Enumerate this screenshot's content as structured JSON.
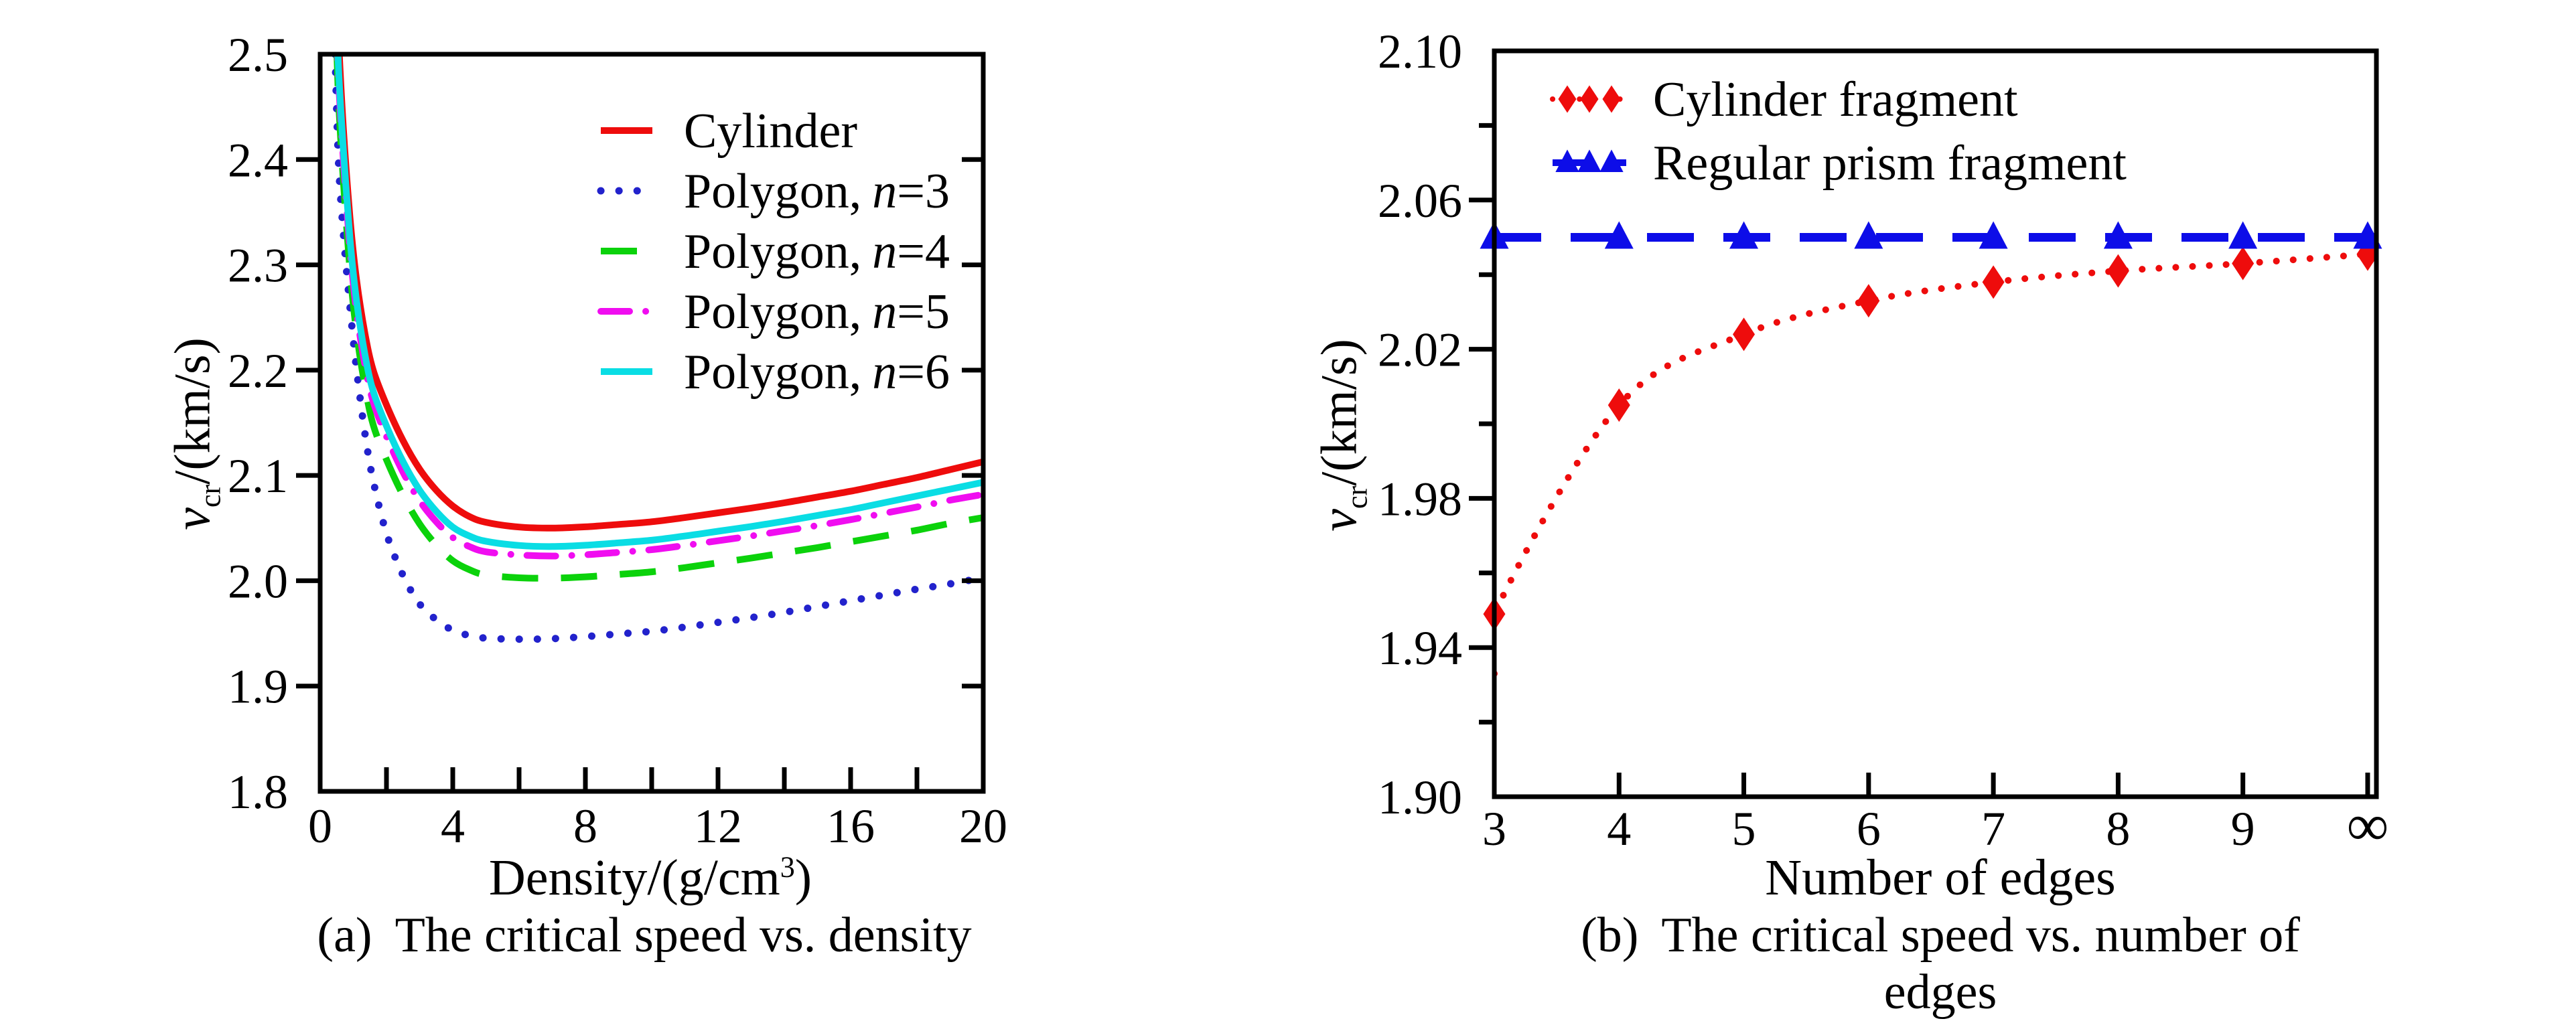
{
  "page": {
    "background": "#ffffff",
    "frame_color": "#000000",
    "text_color": "#000000"
  },
  "chart_data": [
    {
      "id": "a",
      "type": "line",
      "caption_tag": "(a)",
      "caption_text": "The critical speed vs. density",
      "xlabel": {
        "pre": "Density/(g/cm",
        "sup": "3",
        "post": ")"
      },
      "ylabel": {
        "italic": "v",
        "sub": "cr",
        "rest": "/(km/s)"
      },
      "xlim": [
        0,
        20
      ],
      "ylim": [
        1.8,
        2.5
      ],
      "grid": false,
      "legend_position": "top-right-inside",
      "xticks": {
        "label_values": [
          0,
          4,
          8,
          12,
          16,
          20
        ],
        "labels": [
          "0",
          "4",
          "8",
          "12",
          "16",
          "20"
        ],
        "tick_values": [
          2,
          4,
          6,
          8,
          10,
          12,
          14,
          16,
          18
        ]
      },
      "yticks": {
        "label_values": [
          1.8,
          1.9,
          2.0,
          2.1,
          2.2,
          2.3,
          2.4,
          2.5
        ],
        "labels": [
          "1.8",
          "1.9",
          "2.0",
          "2.1",
          "2.2",
          "2.3",
          "2.4",
          "2.5"
        ],
        "tick_values": [
          1.9,
          2.0,
          2.1,
          2.2,
          2.3,
          2.4
        ],
        "minor_tick_values": []
      },
      "x": [
        0.45,
        0.55,
        0.7,
        0.9,
        1.1,
        1.35,
        1.6,
        2,
        2.5,
        3,
        3.5,
        4,
        4.5,
        5,
        6,
        7,
        8,
        9,
        10,
        11,
        12,
        13,
        14,
        15,
        16,
        17,
        18,
        19,
        20
      ],
      "series": [
        {
          "name": "cylinder",
          "label_pre": "Cylinder",
          "label_italic": "",
          "label_post": "",
          "color": "#ee0c0c",
          "dash": "solid",
          "width": 10,
          "marker": "none",
          "values": [
            2.62,
            2.52,
            2.43,
            2.345,
            2.285,
            2.235,
            2.2,
            2.167,
            2.133,
            2.106,
            2.086,
            2.071,
            2.061,
            2.0555,
            2.051,
            2.05,
            2.0512,
            2.0535,
            2.056,
            2.06,
            2.0645,
            2.069,
            2.074,
            2.0795,
            2.085,
            2.0915,
            2.098,
            2.1055,
            2.113
          ]
        },
        {
          "name": "polygon-n3",
          "label_pre": "Polygon,",
          "label_italic": "n",
          "label_post": "=3",
          "color": "#2222cc",
          "dash": "dotted",
          "width": 11,
          "marker": "none",
          "values": [
            2.5,
            2.4,
            2.33,
            2.26,
            2.2,
            2.14,
            2.095,
            2.045,
            2.005,
            1.978,
            1.963,
            1.953,
            1.948,
            1.9455,
            1.9445,
            1.945,
            1.947,
            1.9495,
            1.952,
            1.956,
            1.9605,
            1.965,
            1.97,
            1.9755,
            1.981,
            1.9865,
            1.992,
            1.997,
            2.003
          ]
        },
        {
          "name": "polygon-n4",
          "label_pre": "Polygon,",
          "label_italic": "n",
          "label_post": "=4",
          "color": "#0bd20b",
          "dash": "longdash",
          "width": 10,
          "marker": "none",
          "values": [
            2.56,
            2.46,
            2.38,
            2.295,
            2.235,
            2.185,
            2.148,
            2.115,
            2.081,
            2.054,
            2.034,
            2.019,
            2.0105,
            2.0055,
            2.0028,
            2.0025,
            2.0037,
            2.006,
            2.0085,
            2.0125,
            2.017,
            2.0215,
            2.0265,
            2.0315,
            2.037,
            2.0425,
            2.048,
            2.0545,
            2.06
          ]
        },
        {
          "name": "polygon-n5",
          "label_pre": "Polygon,",
          "label_italic": "n",
          "label_post": "=5",
          "color": "#f00df0",
          "dash": "dashdot",
          "width": 10,
          "marker": "none",
          "values": [
            2.58,
            2.48,
            2.4,
            2.315,
            2.255,
            2.205,
            2.17,
            2.137,
            2.103,
            2.076,
            2.056,
            2.041,
            2.0325,
            2.0275,
            2.0245,
            2.0235,
            2.0247,
            2.027,
            2.0295,
            2.0335,
            2.038,
            2.0425,
            2.0475,
            2.0525,
            2.058,
            2.064,
            2.07,
            2.0765,
            2.082
          ]
        },
        {
          "name": "polygon-n6",
          "label_pre": "Polygon,",
          "label_italic": "n",
          "label_post": "=6",
          "color": "#0adde4",
          "dash": "solid",
          "width": 10,
          "marker": "none",
          "values": [
            2.59,
            2.49,
            2.41,
            2.325,
            2.265,
            2.215,
            2.18,
            2.147,
            2.113,
            2.086,
            2.066,
            2.051,
            2.0425,
            2.0375,
            2.0335,
            2.0325,
            2.0337,
            2.036,
            2.0385,
            2.0425,
            2.047,
            2.0515,
            2.0565,
            2.062,
            2.0675,
            2.074,
            2.0805,
            2.087,
            2.0935
          ]
        }
      ]
    },
    {
      "id": "b",
      "type": "line",
      "caption_tag": "(b)",
      "caption_text": "The critical speed vs. number of edges",
      "xlabel": {
        "pre": "Number of edges",
        "sup": "",
        "post": ""
      },
      "ylabel": {
        "italic": "v",
        "sub": "cr",
        "rest": "/(km/s)"
      },
      "xlim": [
        3,
        10.07
      ],
      "ylim": [
        1.9,
        2.1
      ],
      "grid": false,
      "legend_position": "top-left-inside",
      "xticks": {
        "label_values": [
          3,
          4,
          5,
          6,
          7,
          8,
          9,
          10
        ],
        "labels": [
          "3",
          "4",
          "5",
          "6",
          "7",
          "8",
          "9",
          "∞"
        ],
        "tick_values": [
          4,
          5,
          6,
          7,
          8,
          9,
          10
        ]
      },
      "yticks": {
        "label_values": [
          1.9,
          1.94,
          1.98,
          2.02,
          2.06,
          2.1
        ],
        "labels": [
          "1.90",
          "1.94",
          "1.98",
          "2.02",
          "2.06",
          "2.10"
        ],
        "tick_values": [
          1.94,
          1.98,
          2.02,
          2.06
        ],
        "minor_tick_values": [
          1.92,
          1.96,
          2.0,
          2.04,
          2.08
        ]
      },
      "series": [
        {
          "name": "cylinder-fragment",
          "label_pre": "Cylinder fragment",
          "label_italic": "",
          "label_post": "",
          "color": "#ee0c0c",
          "dash": "dotted",
          "width": 10,
          "marker": "diamond",
          "x": [
            3,
            4,
            5,
            6,
            7,
            8,
            9,
            10
          ],
          "values": [
            1.949,
            2.005,
            2.024,
            2.033,
            2.038,
            2.041,
            2.043,
            2.0455
          ],
          "curve_prefix": [
            [
              3,
              1.933
            ]
          ]
        },
        {
          "name": "regular-prism-fragment",
          "label_pre": "Regular prism fragment",
          "label_italic": "",
          "label_post": "",
          "color": "#0d0de8",
          "dash": "longdash",
          "width": 13,
          "marker": "triangle",
          "x": [
            3,
            4,
            5,
            6,
            7,
            8,
            9,
            10
          ],
          "values": [
            2.05,
            2.05,
            2.05,
            2.05,
            2.05,
            2.05,
            2.05,
            2.05
          ],
          "extend_line": true
        }
      ]
    }
  ]
}
